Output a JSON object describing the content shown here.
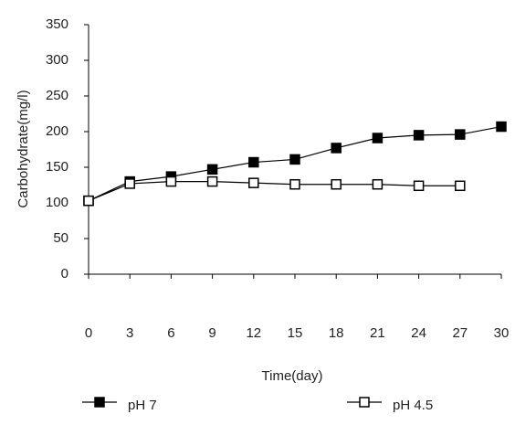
{
  "chart_data": {
    "type": "line",
    "x_label": "Time(day)",
    "y_label": "Carbohydrate(mg/l)",
    "x": [
      0,
      3,
      6,
      9,
      12,
      15,
      18,
      21,
      24,
      27,
      30
    ],
    "series": [
      {
        "name": "pH 7",
        "color": "#000000",
        "marker": "filled-square",
        "values": [
          103,
          130,
          137,
          147,
          157,
          161,
          177,
          191,
          195,
          196,
          207
        ]
      },
      {
        "name": "pH 4.5",
        "color": "#000000",
        "marker": "open-square",
        "values": [
          103,
          127,
          130,
          130,
          128,
          126,
          126,
          126,
          124,
          124,
          null
        ]
      }
    ],
    "xlim": [
      0,
      30
    ],
    "xticks": [
      0,
      3,
      6,
      9,
      12,
      15,
      18,
      21,
      24,
      27,
      30
    ],
    "ylim": [
      0,
      350
    ],
    "yticks": [
      0,
      50,
      100,
      150,
      200,
      250,
      300,
      350
    ],
    "grid": false
  }
}
